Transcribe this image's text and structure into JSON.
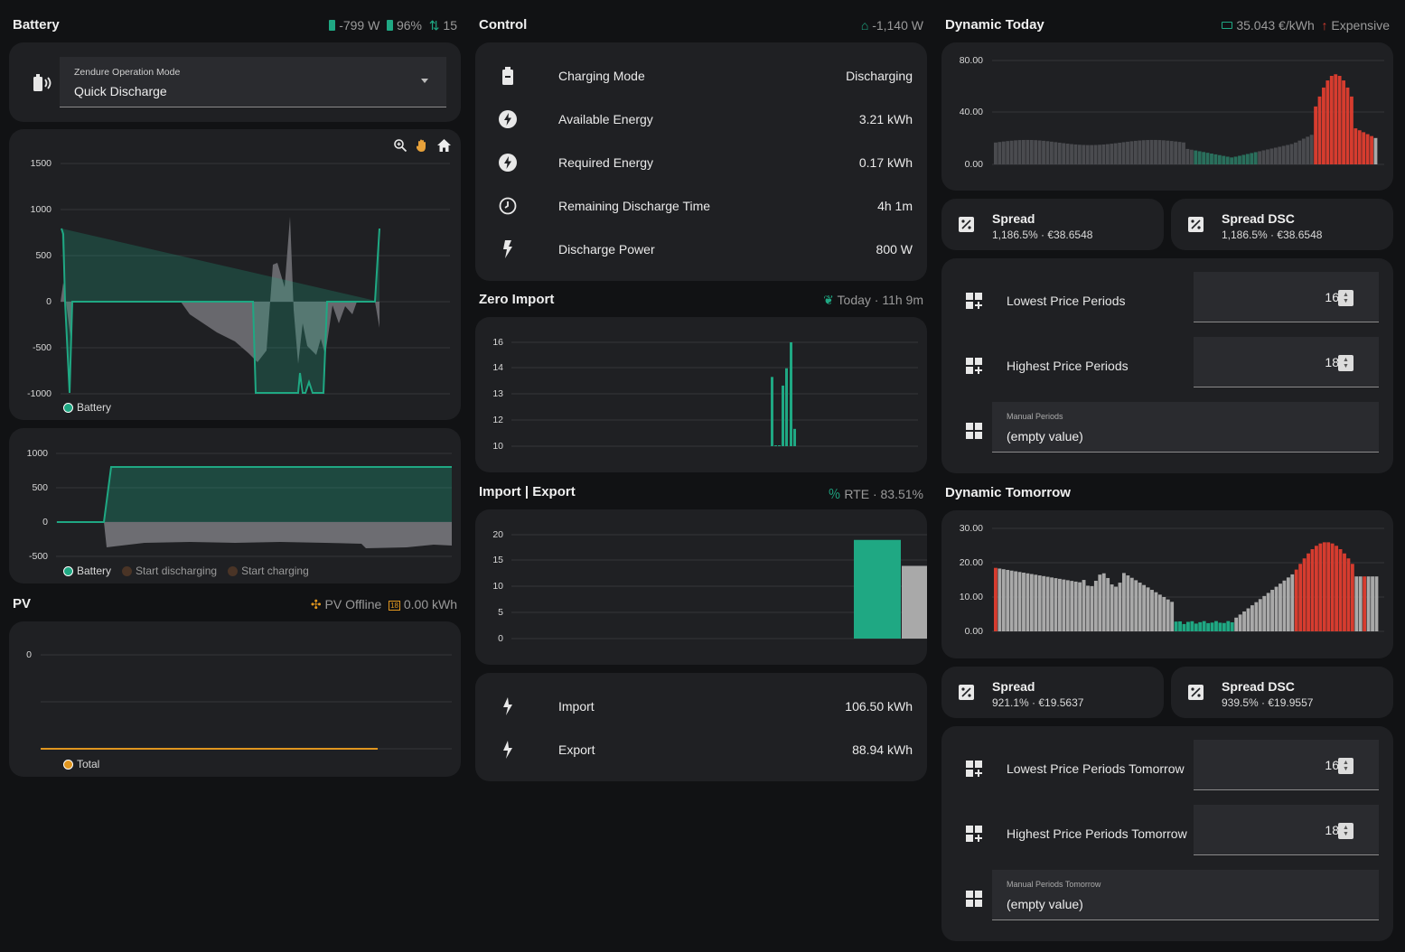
{
  "battery": {
    "title": "Battery",
    "power": "-799 W",
    "soc": "96%",
    "cycles": "15",
    "mode_label": "Zendure Operation Mode",
    "mode_value": "Quick Discharge",
    "toolbar_icons": [
      "zoom-in-icon",
      "pan-hand-icon",
      "home-icon"
    ]
  },
  "battery_chart": {
    "type": "area",
    "yticks": [
      "1500",
      "1000",
      "500",
      "0",
      "-500",
      "-1000"
    ],
    "legend": "Battery"
  },
  "battery_chart2": {
    "type": "area",
    "yticks": [
      "1000",
      "500",
      "0",
      "-500"
    ],
    "legend": [
      "Battery",
      "Start discharging",
      "Start charging"
    ]
  },
  "pv": {
    "title": "PV",
    "status": "PV Offline",
    "energy": "0.00 kWh",
    "ytick": "0",
    "legend": "Total"
  },
  "control": {
    "title": "Control",
    "meta": "-1,140 W",
    "rows": [
      {
        "label": "Charging Mode",
        "value": "Discharging",
        "icon": "battery-icon"
      },
      {
        "label": "Available Energy",
        "value": "3.21 kWh",
        "icon": "lightning-circle-icon"
      },
      {
        "label": "Required Energy",
        "value": "0.17 kWh",
        "icon": "lightning-circle-icon"
      },
      {
        "label": "Remaining Discharge Time",
        "value": "4h 1m",
        "icon": "clock-icon"
      },
      {
        "label": "Discharge Power",
        "value": "800 W",
        "icon": "flash-icon"
      }
    ]
  },
  "zero_import": {
    "title": "Zero Import",
    "meta": "Today · 11h 9m",
    "yticks": [
      "16",
      "14",
      "13",
      "12",
      "10"
    ]
  },
  "import_export": {
    "title": "Import | Export",
    "meta": "RTE · 83.51%",
    "yticks": [
      "20",
      "15",
      "10",
      "5",
      "0"
    ],
    "import_label": "Import",
    "import_value": "106.50 kWh",
    "export_label": "Export",
    "export_value": "88.94 kWh"
  },
  "dynamic_today": {
    "title": "Dynamic Today",
    "price": "35.043 €/kWh",
    "status": "Expensive",
    "yticks": [
      "80.00",
      "40.00",
      "0.00"
    ],
    "spread_title": "Spread",
    "spread_value": "1,186.5% · €38.6548",
    "spread_dsc_title": "Spread DSC",
    "spread_dsc_value": "1,186.5% · €38.6548",
    "lowest_label": "Lowest Price Periods",
    "lowest_value": "16",
    "highest_label": "Highest Price Periods",
    "highest_value": "18",
    "manual_label": "Manual Periods",
    "manual_value": "(empty value)"
  },
  "dynamic_tomorrow": {
    "title": "Dynamic Tomorrow",
    "yticks": [
      "30.00",
      "20.00",
      "10.00",
      "0.00"
    ],
    "spread_title": "Spread",
    "spread_value": "921.1% · €19.5637",
    "spread_dsc_title": "Spread DSC",
    "spread_dsc_value": "939.5% · €19.9557",
    "lowest_label": "Lowest Price Periods Tomorrow",
    "lowest_value": "16",
    "highest_label": "Highest Price Periods Tomorrow",
    "highest_value": "18",
    "manual_label": "Manual Periods Tomorrow",
    "manual_value": "(empty value)"
  },
  "colors": {
    "accent": "#1fa883",
    "expensive": "#d63c2f",
    "neutral": "#a9a9a9",
    "pv": "#e0961f"
  },
  "chart_data": [
    {
      "type": "bar",
      "name": "Zero Import",
      "ylim": [
        10,
        16
      ],
      "values": [
        14,
        10,
        10,
        13.5,
        14.5,
        16,
        11
      ]
    },
    {
      "type": "bar",
      "name": "Import | Export",
      "categories": [
        "Import",
        "Export"
      ],
      "values": [
        19,
        14
      ],
      "ylim": [
        0,
        20
      ]
    }
  ]
}
